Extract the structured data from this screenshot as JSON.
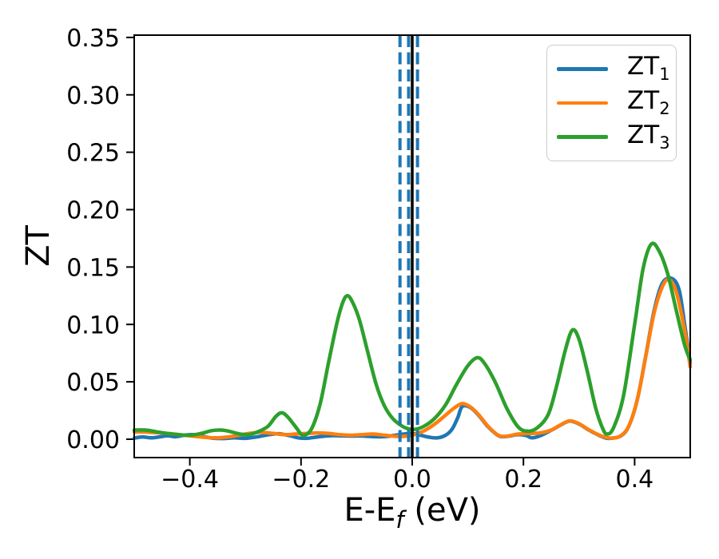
{
  "figure": {
    "background": "#ffffff"
  },
  "chart_data": {
    "type": "line",
    "title": "",
    "xlabel": {
      "pre": "E-E",
      "sub": "f",
      "post": " (eV)"
    },
    "ylabel": "ZT",
    "xlim": [
      -0.5,
      0.5
    ],
    "ylim": [
      -0.016,
      0.352
    ],
    "grid": false,
    "x_ticks": [
      {
        "v": -0.4,
        "label": "−0.4"
      },
      {
        "v": -0.2,
        "label": "−0.2"
      },
      {
        "v": 0.0,
        "label": "0.0"
      },
      {
        "v": 0.2,
        "label": "0.2"
      },
      {
        "v": 0.4,
        "label": "0.4"
      }
    ],
    "y_ticks": [
      {
        "v": 0.0,
        "label": "0.00"
      },
      {
        "v": 0.05,
        "label": "0.05"
      },
      {
        "v": 0.1,
        "label": "0.10"
      },
      {
        "v": 0.15,
        "label": "0.15"
      },
      {
        "v": 0.2,
        "label": "0.20"
      },
      {
        "v": 0.25,
        "label": "0.25"
      },
      {
        "v": 0.3,
        "label": "0.30"
      },
      {
        "v": 0.35,
        "label": "0.35"
      }
    ],
    "vlines": [
      {
        "x": 0.0,
        "color": "#000000",
        "style": "solid",
        "width": 3.5
      },
      {
        "x": -0.022,
        "color": "#1f77b4",
        "style": "dashed",
        "width": 4
      },
      {
        "x": -0.0065,
        "color": "#1f77b4",
        "style": "dashed",
        "width": 4
      },
      {
        "x": 0.0095,
        "color": "#1f77b4",
        "style": "dashed",
        "width": 4
      }
    ],
    "legend": {
      "position": "upper right",
      "items": [
        {
          "base": "ZT",
          "sub": "1",
          "color": "#1f77b4"
        },
        {
          "base": "ZT",
          "sub": "2",
          "color": "#ff7f0e"
        },
        {
          "base": "ZT",
          "sub": "3",
          "color": "#2ca02c"
        }
      ]
    },
    "series": [
      {
        "name": "ZT1",
        "color": "#1f77b4",
        "points": [
          [
            -0.5,
            0.001
          ],
          [
            -0.485,
            0.002
          ],
          [
            -0.47,
            0.0012
          ],
          [
            -0.455,
            0.002
          ],
          [
            -0.44,
            0.003
          ],
          [
            -0.425,
            0.0022
          ],
          [
            -0.41,
            0.0035
          ],
          [
            -0.395,
            0.004
          ],
          [
            -0.38,
            0.0028
          ],
          [
            -0.36,
            0.001
          ],
          [
            -0.34,
            0.0006
          ],
          [
            -0.32,
            0.0012
          ],
          [
            -0.3,
            0.0008
          ],
          [
            -0.28,
            0.002
          ],
          [
            -0.26,
            0.0038
          ],
          [
            -0.24,
            0.0048
          ],
          [
            -0.22,
            0.003
          ],
          [
            -0.205,
            0.0012
          ],
          [
            -0.19,
            0.0008
          ],
          [
            -0.17,
            0.002
          ],
          [
            -0.15,
            0.003
          ],
          [
            -0.13,
            0.003
          ],
          [
            -0.11,
            0.0028
          ],
          [
            -0.09,
            0.0028
          ],
          [
            -0.07,
            0.0022
          ],
          [
            -0.05,
            0.0022
          ],
          [
            -0.03,
            0.0035
          ],
          [
            -0.015,
            0.0045
          ],
          [
            0.0,
            0.005
          ],
          [
            0.015,
            0.0035
          ],
          [
            0.03,
            0.0018
          ],
          [
            0.045,
            0.0012
          ],
          [
            0.06,
            0.0035
          ],
          [
            0.072,
            0.009
          ],
          [
            0.082,
            0.019
          ],
          [
            0.09,
            0.0285
          ],
          [
            0.105,
            0.0275
          ],
          [
            0.12,
            0.0205
          ],
          [
            0.135,
            0.0115
          ],
          [
            0.15,
            0.0048
          ],
          [
            0.16,
            0.0022
          ],
          [
            0.175,
            0.0028
          ],
          [
            0.19,
            0.004
          ],
          [
            0.205,
            0.0032
          ],
          [
            0.215,
            0.0012
          ],
          [
            0.23,
            0.003
          ],
          [
            0.25,
            0.0078
          ],
          [
            0.265,
            0.0118
          ],
          [
            0.283,
            0.0158
          ],
          [
            0.3,
            0.0132
          ],
          [
            0.315,
            0.0088
          ],
          [
            0.33,
            0.0048
          ],
          [
            0.345,
            0.0015
          ],
          [
            0.355,
            0.0008
          ],
          [
            0.375,
            0.0028
          ],
          [
            0.39,
            0.0118
          ],
          [
            0.405,
            0.035
          ],
          [
            0.42,
            0.0725
          ],
          [
            0.435,
            0.112
          ],
          [
            0.45,
            0.136
          ],
          [
            0.467,
            0.14
          ],
          [
            0.48,
            0.13
          ],
          [
            0.49,
            0.1
          ],
          [
            0.5,
            0.066
          ]
        ]
      },
      {
        "name": "ZT2",
        "color": "#ff7f0e",
        "points": [
          [
            -0.5,
            0.0065
          ],
          [
            -0.47,
            0.006
          ],
          [
            -0.44,
            0.005
          ],
          [
            -0.41,
            0.0035
          ],
          [
            -0.38,
            0.002
          ],
          [
            -0.355,
            0.0012
          ],
          [
            -0.33,
            0.002
          ],
          [
            -0.3,
            0.0045
          ],
          [
            -0.275,
            0.006
          ],
          [
            -0.25,
            0.005
          ],
          [
            -0.23,
            0.004
          ],
          [
            -0.21,
            0.0045
          ],
          [
            -0.19,
            0.005
          ],
          [
            -0.17,
            0.0055
          ],
          [
            -0.15,
            0.005
          ],
          [
            -0.13,
            0.004
          ],
          [
            -0.11,
            0.0035
          ],
          [
            -0.09,
            0.004
          ],
          [
            -0.07,
            0.0045
          ],
          [
            -0.05,
            0.0035
          ],
          [
            -0.03,
            0.0025
          ],
          [
            -0.015,
            0.0025
          ],
          [
            0.0,
            0.0035
          ],
          [
            0.02,
            0.007
          ],
          [
            0.04,
            0.013
          ],
          [
            0.06,
            0.021
          ],
          [
            0.075,
            0.027
          ],
          [
            0.09,
            0.031
          ],
          [
            0.105,
            0.028
          ],
          [
            0.12,
            0.021
          ],
          [
            0.135,
            0.012
          ],
          [
            0.15,
            0.005
          ],
          [
            0.16,
            0.0025
          ],
          [
            0.175,
            0.003
          ],
          [
            0.19,
            0.0045
          ],
          [
            0.21,
            0.005
          ],
          [
            0.23,
            0.0055
          ],
          [
            0.25,
            0.008
          ],
          [
            0.265,
            0.012
          ],
          [
            0.283,
            0.016
          ],
          [
            0.3,
            0.0135
          ],
          [
            0.315,
            0.009
          ],
          [
            0.33,
            0.005
          ],
          [
            0.345,
            0.002
          ],
          [
            0.36,
            0.001
          ],
          [
            0.375,
            0.003
          ],
          [
            0.39,
            0.012
          ],
          [
            0.405,
            0.035
          ],
          [
            0.42,
            0.072
          ],
          [
            0.435,
            0.11
          ],
          [
            0.45,
            0.133
          ],
          [
            0.462,
            0.139
          ],
          [
            0.475,
            0.128
          ],
          [
            0.49,
            0.095
          ],
          [
            0.5,
            0.063
          ]
        ]
      },
      {
        "name": "ZT3",
        "color": "#2ca02c",
        "points": [
          [
            -0.5,
            0.008
          ],
          [
            -0.48,
            0.008
          ],
          [
            -0.46,
            0.0065
          ],
          [
            -0.44,
            0.005
          ],
          [
            -0.42,
            0.004
          ],
          [
            -0.4,
            0.0035
          ],
          [
            -0.38,
            0.005
          ],
          [
            -0.36,
            0.0075
          ],
          [
            -0.345,
            0.008
          ],
          [
            -0.33,
            0.007
          ],
          [
            -0.31,
            0.0045
          ],
          [
            -0.295,
            0.004
          ],
          [
            -0.28,
            0.006
          ],
          [
            -0.26,
            0.011
          ],
          [
            -0.245,
            0.02
          ],
          [
            -0.235,
            0.023
          ],
          [
            -0.225,
            0.02
          ],
          [
            -0.21,
            0.011
          ],
          [
            -0.2,
            0.0045
          ],
          [
            -0.193,
            0.0035
          ],
          [
            -0.18,
            0.01
          ],
          [
            -0.165,
            0.032
          ],
          [
            -0.15,
            0.068
          ],
          [
            -0.135,
            0.102
          ],
          [
            -0.125,
            0.119
          ],
          [
            -0.117,
            0.125
          ],
          [
            -0.108,
            0.12
          ],
          [
            -0.095,
            0.104
          ],
          [
            -0.08,
            0.076
          ],
          [
            -0.065,
            0.048
          ],
          [
            -0.05,
            0.029
          ],
          [
            -0.035,
            0.018
          ],
          [
            -0.02,
            0.012
          ],
          [
            -0.01,
            0.0095
          ],
          [
            0.003,
            0.0085
          ],
          [
            0.02,
            0.011
          ],
          [
            0.04,
            0.018
          ],
          [
            0.06,
            0.03
          ],
          [
            0.08,
            0.048
          ],
          [
            0.1,
            0.064
          ],
          [
            0.117,
            0.071
          ],
          [
            0.13,
            0.066
          ],
          [
            0.15,
            0.049
          ],
          [
            0.17,
            0.027
          ],
          [
            0.19,
            0.011
          ],
          [
            0.207,
            0.007
          ],
          [
            0.225,
            0.01
          ],
          [
            0.245,
            0.022
          ],
          [
            0.26,
            0.047
          ],
          [
            0.275,
            0.077
          ],
          [
            0.288,
            0.095
          ],
          [
            0.3,
            0.087
          ],
          [
            0.315,
            0.059
          ],
          [
            0.33,
            0.027
          ],
          [
            0.342,
            0.01
          ],
          [
            0.35,
            0.0045
          ],
          [
            0.362,
            0.01
          ],
          [
            0.38,
            0.038
          ],
          [
            0.4,
            0.1
          ],
          [
            0.415,
            0.148
          ],
          [
            0.43,
            0.17
          ],
          [
            0.445,
            0.163
          ],
          [
            0.46,
            0.143
          ],
          [
            0.475,
            0.112
          ],
          [
            0.49,
            0.082
          ],
          [
            0.5,
            0.069
          ]
        ]
      }
    ]
  }
}
